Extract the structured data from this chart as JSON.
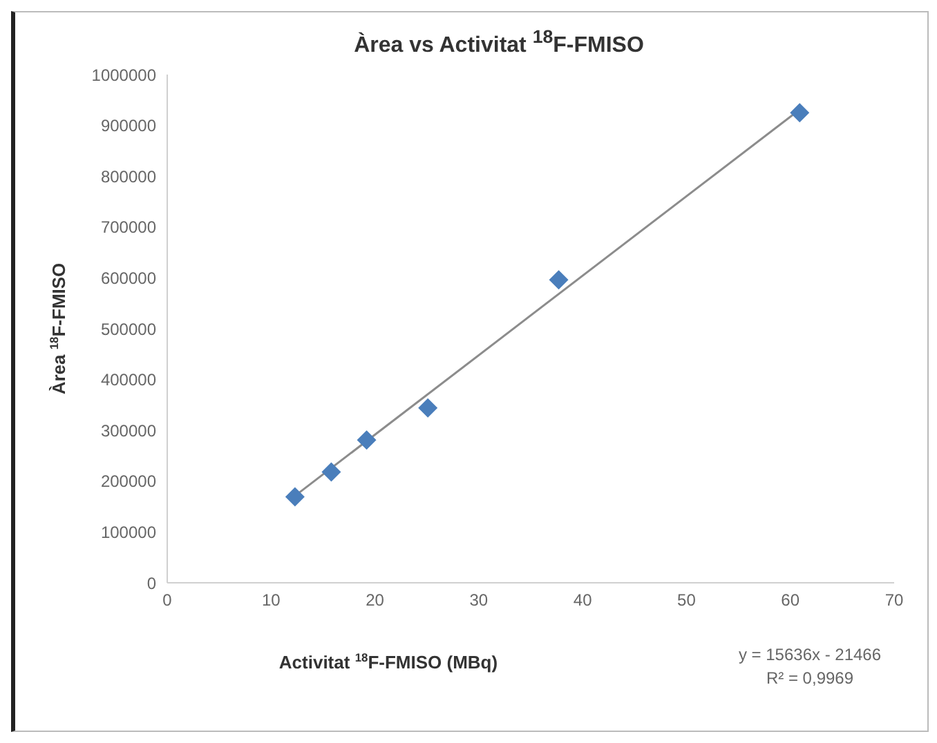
{
  "chart_data": {
    "type": "scatter",
    "title": "Àrea vs Activitat $^{18}$F-FMISO",
    "xlabel": "Activitat $^{18}$F-FMISO (MBq)",
    "ylabel": "Àrea $^{18}$F-FMISO",
    "annotations": [
      "y = 15636x - 21466",
      "R² = 0,9969"
    ],
    "series": [
      {
        "color": "#4a7ebb",
        "x": [
          12.3,
          15.8,
          19.2,
          25.1,
          37.7,
          60.9
        ],
        "values": [
          169000,
          218000,
          281000,
          344000,
          596000,
          925000
        ],
        "marker": "diamond"
      },
      {
        "type": "line",
        "color": "#8c8c8c",
        "x": [
          12.3,
          60.9
        ],
        "values": [
          171000,
          931000
        ],
        "marker": "none",
        "line_style": "solid"
      }
    ],
    "xlim": [
      0,
      70
    ],
    "xticks": [
      0,
      10,
      20,
      30,
      40,
      50,
      60,
      70
    ],
    "ylim": [
      0,
      1000000
    ],
    "yticks": [
      0,
      100000,
      200000,
      300000,
      400000,
      500000,
      600000,
      700000,
      800000,
      900000,
      1000000
    ],
    "grid": false,
    "legend": false
  }
}
